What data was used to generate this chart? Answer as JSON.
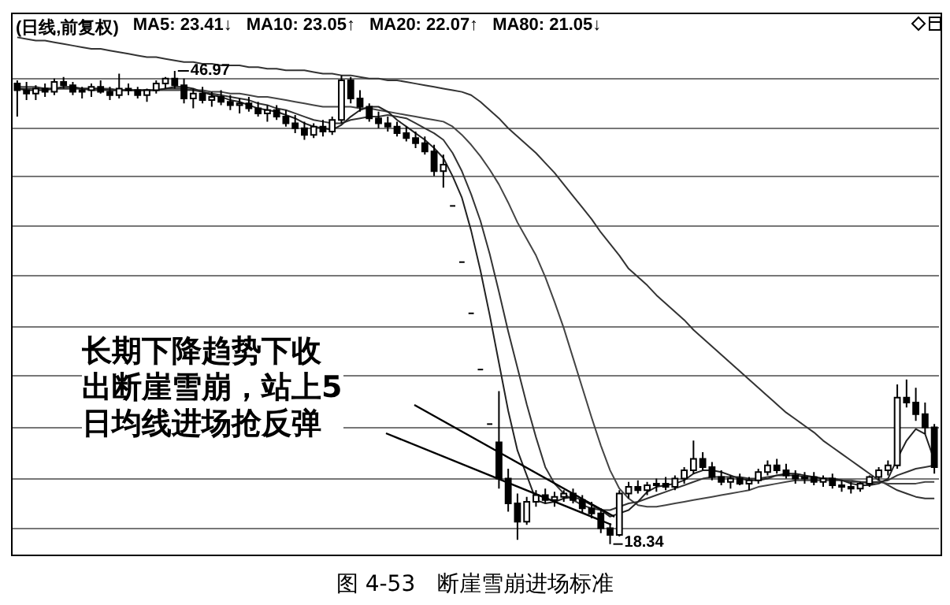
{
  "chart_data": {
    "type": "candlestick",
    "title": "(日线,前复权)",
    "categories": [
      null,
      null,
      null,
      null,
      null,
      null,
      null,
      null,
      null,
      null,
      null,
      null,
      null,
      null,
      null,
      null,
      null,
      null,
      null,
      null,
      null,
      null,
      null,
      null,
      null,
      null,
      null,
      null,
      null,
      null,
      null,
      null,
      null,
      null,
      null,
      null,
      null,
      null,
      null,
      null,
      null,
      null,
      null,
      null,
      null,
      null,
      null,
      null,
      null,
      null,
      null,
      null,
      null,
      null,
      null,
      null,
      null,
      null,
      null,
      null,
      null,
      null,
      null,
      null,
      null,
      null,
      null,
      null,
      null,
      null,
      null,
      null,
      null,
      null,
      null,
      null,
      null,
      null,
      null,
      null,
      null,
      null,
      null,
      null,
      null,
      null,
      null,
      null,
      null,
      null,
      null,
      null,
      null,
      null,
      null,
      null,
      null,
      null,
      null,
      null
    ],
    "series": [
      {
        "type": "candlestick",
        "color": "#000000",
        "ohlc": [
          [
            46.2,
            46.4,
            44.2,
            45.8
          ],
          [
            45.8,
            46.3,
            45.2,
            45.6
          ],
          [
            45.6,
            46.1,
            45.2,
            45.9
          ],
          [
            45.9,
            46.2,
            45.4,
            45.7
          ],
          [
            45.7,
            46.5,
            45.5,
            46.3
          ],
          [
            46.3,
            46.6,
            45.9,
            46.1
          ],
          [
            46.1,
            46.3,
            45.5,
            45.7
          ],
          [
            45.7,
            46.0,
            45.3,
            45.8
          ],
          [
            45.8,
            46.2,
            45.4,
            46.0
          ],
          [
            46.0,
            46.4,
            45.6,
            45.7
          ],
          [
            45.7,
            46.0,
            45.2,
            45.5
          ],
          [
            45.5,
            46.8,
            45.3,
            45.9
          ],
          [
            45.9,
            46.2,
            45.5,
            45.8
          ],
          [
            45.8,
            46.0,
            45.3,
            45.5
          ],
          [
            45.5,
            45.9,
            45.1,
            45.8
          ],
          [
            45.8,
            46.4,
            45.6,
            46.2
          ],
          [
            46.2,
            46.6,
            45.9,
            46.5
          ],
          [
            46.5,
            46.97,
            45.9,
            46.1
          ],
          [
            46.1,
            46.5,
            45.0,
            45.3
          ],
          [
            45.3,
            45.9,
            44.7,
            45.6
          ],
          [
            45.6,
            46.0,
            45.0,
            45.2
          ],
          [
            45.2,
            45.7,
            44.8,
            45.4
          ],
          [
            45.4,
            45.8,
            44.9,
            45.1
          ],
          [
            45.1,
            45.5,
            44.6,
            44.9
          ],
          [
            44.9,
            45.3,
            44.4,
            45.0
          ],
          [
            45.0,
            45.4,
            44.5,
            44.7
          ],
          [
            44.7,
            45.1,
            44.2,
            44.4
          ],
          [
            44.4,
            44.9,
            43.9,
            44.6
          ],
          [
            44.6,
            44.9,
            44.0,
            44.2
          ],
          [
            44.2,
            44.6,
            43.6,
            43.8
          ],
          [
            43.8,
            44.3,
            43.2,
            43.5
          ],
          [
            43.5,
            43.9,
            42.8,
            43.1
          ],
          [
            43.1,
            43.8,
            42.9,
            43.6
          ],
          [
            43.6,
            44.0,
            43.0,
            43.3
          ],
          [
            43.3,
            44.2,
            43.1,
            44.0
          ],
          [
            44.0,
            46.7,
            43.8,
            46.4
          ],
          [
            46.4,
            46.6,
            45.0,
            45.3
          ],
          [
            45.3,
            45.8,
            44.5,
            44.8
          ],
          [
            44.8,
            45.0,
            43.9,
            44.1
          ],
          [
            44.1,
            44.5,
            43.5,
            43.8
          ],
          [
            43.8,
            44.2,
            43.3,
            43.6
          ],
          [
            43.6,
            43.9,
            43.0,
            43.2
          ],
          [
            43.2,
            43.6,
            42.7,
            42.9
          ],
          [
            42.9,
            43.3,
            42.3,
            42.6
          ],
          [
            42.6,
            43.0,
            41.9,
            42.1
          ],
          [
            42.1,
            42.5,
            40.6,
            40.9
          ],
          [
            40.9,
            41.9,
            39.9,
            41.3
          ],
          [
            38.8,
            38.8,
            38.8,
            38.8
          ],
          [
            35.4,
            35.4,
            35.4,
            35.4
          ],
          [
            32.3,
            32.3,
            32.3,
            32.3
          ],
          [
            28.9,
            28.9,
            28.9,
            28.9
          ],
          [
            25.6,
            25.6,
            25.6,
            25.6
          ],
          [
            24.5,
            27.6,
            21.7,
            22.3
          ],
          [
            22.3,
            22.9,
            20.3,
            20.8
          ],
          [
            20.8,
            21.4,
            18.6,
            19.7
          ],
          [
            19.7,
            21.2,
            19.5,
            20.9
          ],
          [
            20.9,
            21.6,
            20.6,
            21.3
          ],
          [
            21.3,
            21.7,
            20.8,
            21.0
          ],
          [
            21.0,
            21.5,
            20.6,
            21.2
          ],
          [
            21.2,
            21.6,
            20.9,
            21.4
          ],
          [
            21.4,
            21.7,
            20.8,
            21.0
          ],
          [
            21.0,
            21.3,
            20.2,
            20.5
          ],
          [
            20.5,
            20.9,
            19.9,
            20.2
          ],
          [
            20.2,
            20.5,
            19.0,
            19.3
          ],
          [
            19.3,
            19.6,
            18.34,
            18.9
          ],
          [
            18.9,
            21.6,
            18.8,
            21.4
          ],
          [
            21.4,
            22.1,
            21.1,
            21.8
          ],
          [
            21.8,
            22.2,
            21.4,
            21.6
          ],
          [
            21.6,
            22.1,
            21.3,
            21.9
          ],
          [
            21.9,
            22.3,
            21.5,
            22.0
          ],
          [
            22.0,
            22.4,
            21.6,
            21.8
          ],
          [
            21.8,
            22.5,
            21.6,
            22.3
          ],
          [
            22.3,
            23.0,
            22.0,
            22.8
          ],
          [
            22.8,
            24.6,
            22.6,
            23.5
          ],
          [
            23.5,
            23.9,
            22.8,
            23.0
          ],
          [
            23.0,
            23.3,
            22.2,
            22.4
          ],
          [
            22.4,
            22.8,
            21.9,
            22.1
          ],
          [
            22.1,
            22.5,
            21.7,
            22.3
          ],
          [
            22.3,
            22.6,
            21.9,
            22.0
          ],
          [
            22.0,
            22.4,
            21.6,
            22.2
          ],
          [
            22.2,
            22.9,
            22.0,
            22.7
          ],
          [
            22.7,
            23.4,
            22.5,
            23.1
          ],
          [
            23.1,
            23.5,
            22.6,
            22.8
          ],
          [
            22.8,
            23.2,
            22.3,
            22.5
          ],
          [
            22.5,
            22.8,
            22.0,
            22.3
          ],
          [
            22.3,
            22.7,
            22.0,
            22.4
          ],
          [
            22.4,
            22.7,
            21.9,
            22.1
          ],
          [
            22.1,
            22.5,
            21.8,
            22.3
          ],
          [
            22.3,
            22.6,
            21.7,
            21.9
          ],
          [
            21.9,
            22.2,
            21.5,
            21.8
          ],
          [
            21.8,
            22.1,
            21.4,
            21.7
          ],
          [
            21.7,
            22.1,
            21.5,
            22.0
          ],
          [
            22.0,
            22.5,
            21.8,
            22.4
          ],
          [
            22.4,
            23.0,
            22.2,
            22.8
          ],
          [
            22.8,
            23.4,
            22.5,
            23.1
          ],
          [
            23.1,
            28.0,
            22.9,
            27.2
          ],
          [
            27.2,
            28.3,
            26.6,
            26.9
          ],
          [
            26.9,
            27.8,
            25.8,
            26.2
          ],
          [
            26.2,
            26.9,
            25.0,
            25.4
          ],
          [
            25.4,
            25.6,
            22.6,
            23.0
          ]
        ],
        "value_labels": [
          null,
          null,
          null,
          null,
          null,
          null,
          null,
          null,
          null,
          null,
          null,
          null,
          null,
          null,
          null,
          null,
          null,
          "46.97",
          null,
          null,
          null,
          null,
          null,
          null,
          null,
          null,
          null,
          null,
          null,
          null,
          null,
          null,
          null,
          null,
          null,
          null,
          null,
          null,
          null,
          null,
          null,
          null,
          null,
          null,
          null,
          null,
          null,
          null,
          null,
          null,
          null,
          null,
          null,
          null,
          null,
          null,
          null,
          null,
          null,
          null,
          null,
          null,
          null,
          null,
          "18.34",
          null,
          null,
          null,
          null,
          null,
          null,
          null,
          null,
          null,
          null,
          null,
          null,
          null,
          null,
          null,
          null,
          null,
          null,
          null,
          null,
          null,
          null,
          null,
          null,
          null,
          null,
          null,
          null,
          null,
          null,
          null,
          null,
          null,
          null,
          null
        ]
      },
      {
        "type": "line",
        "color": "#222222",
        "values": [
          45.9,
          45.8,
          45.8,
          45.8,
          45.9,
          46.0,
          46.0,
          45.9,
          45.9,
          45.9,
          45.8,
          45.8,
          45.8,
          45.8,
          45.8,
          45.8,
          45.9,
          46.0,
          46.0,
          45.9,
          45.7,
          45.5,
          45.4,
          45.2,
          45.1,
          44.9,
          44.7,
          44.6,
          44.5,
          44.3,
          44.1,
          43.8,
          43.6,
          43.5,
          43.4,
          43.7,
          44.2,
          44.6,
          44.8,
          44.8,
          44.5,
          44.0,
          43.6,
          43.2,
          42.8,
          42.3,
          41.7,
          40.6,
          39.3,
          37.3,
          34.9,
          32.2,
          29.3,
          26.4,
          24.0,
          22.5,
          21.0,
          20.8,
          20.9,
          21.1,
          21.2,
          21.0,
          20.7,
          20.4,
          20.0,
          20.2,
          20.4,
          20.9,
          21.5,
          21.8,
          21.9,
          22.0,
          22.2,
          22.6,
          22.8,
          22.8,
          22.7,
          22.5,
          22.3,
          22.2,
          22.2,
          22.3,
          22.5,
          22.6,
          22.6,
          22.5,
          22.4,
          22.3,
          22.3,
          22.2,
          22.0,
          21.9,
          21.9,
          22.0,
          22.3,
          23.5,
          24.6,
          25.3,
          25.0,
          23.4
        ]
      },
      {
        "type": "line",
        "color": "#333333",
        "values": [
          45.9,
          45.9,
          45.9,
          45.9,
          45.9,
          45.9,
          45.9,
          45.9,
          45.8,
          45.8,
          45.8,
          45.8,
          45.8,
          45.8,
          45.8,
          45.8,
          45.9,
          45.9,
          45.9,
          45.8,
          45.7,
          45.6,
          45.5,
          45.4,
          45.3,
          45.2,
          45.0,
          44.9,
          44.7,
          44.6,
          44.4,
          44.2,
          44.0,
          43.9,
          43.8,
          43.8,
          44.0,
          44.1,
          44.2,
          44.2,
          44.3,
          44.2,
          44.1,
          43.8,
          43.5,
          43.2,
          42.8,
          42.0,
          40.9,
          39.5,
          37.9,
          35.9,
          33.6,
          31.2,
          29.0,
          26.8,
          24.8,
          23.0,
          22.0,
          21.4,
          21.0,
          20.7,
          20.5,
          20.4,
          20.4,
          20.6,
          20.8,
          20.9,
          21.1,
          21.3,
          21.5,
          21.7,
          21.9,
          22.1,
          22.3,
          22.4,
          22.4,
          22.4,
          22.4,
          22.3,
          22.3,
          22.4,
          22.5,
          22.5,
          22.5,
          22.4,
          22.4,
          22.3,
          22.3,
          22.2,
          22.1,
          22.1,
          22.0,
          22.1,
          22.2,
          22.5,
          22.7,
          22.9,
          23.0,
          23.1
        ]
      },
      {
        "type": "line",
        "color": "#444444",
        "values": [
          46.0,
          46.0,
          46.0,
          45.9,
          45.9,
          45.9,
          45.9,
          45.9,
          45.9,
          45.9,
          45.9,
          45.8,
          45.8,
          45.8,
          45.8,
          45.8,
          45.8,
          45.8,
          45.8,
          45.8,
          45.8,
          45.7,
          45.7,
          45.6,
          45.6,
          45.5,
          45.4,
          45.4,
          45.3,
          45.2,
          45.1,
          45.0,
          44.9,
          44.8,
          44.8,
          44.8,
          44.8,
          44.7,
          44.7,
          44.6,
          44.5,
          44.4,
          44.3,
          44.2,
          44.1,
          44.0,
          43.9,
          43.6,
          43.1,
          42.5,
          41.8,
          41.0,
          40.1,
          39.0,
          37.8,
          36.8,
          35.8,
          34.5,
          33.0,
          31.4,
          29.6,
          27.8,
          26.0,
          24.3,
          22.8,
          21.7,
          21.1,
          20.7,
          20.6,
          20.6,
          20.7,
          20.8,
          20.9,
          21.0,
          21.1,
          21.2,
          21.3,
          21.4,
          21.5,
          21.6,
          21.8,
          21.9,
          22.0,
          22.1,
          22.2,
          22.2,
          22.2,
          22.2,
          22.2,
          22.2,
          22.2,
          22.1,
          22.1,
          22.1,
          22.0,
          22.0,
          22.0,
          22.0,
          22.1,
          22.1
        ]
      },
      {
        "type": "line",
        "color": "#333333",
        "values": [
          49.0,
          48.9,
          48.8,
          48.8,
          48.7,
          48.6,
          48.5,
          48.4,
          48.3,
          48.3,
          48.2,
          48.1,
          48.0,
          47.9,
          47.8,
          47.8,
          47.7,
          47.6,
          47.5,
          47.5,
          47.4,
          47.4,
          47.3,
          47.3,
          47.3,
          47.2,
          47.2,
          47.1,
          47.1,
          47.0,
          47.0,
          47.0,
          46.9,
          46.8,
          46.8,
          46.7,
          46.7,
          46.6,
          46.5,
          46.5,
          46.4,
          46.4,
          46.3,
          46.2,
          46.1,
          46.0,
          45.9,
          45.8,
          45.7,
          45.5,
          45.1,
          44.6,
          44.1,
          43.5,
          43.0,
          42.5,
          42.0,
          41.4,
          40.8,
          40.1,
          39.4,
          38.7,
          38.0,
          37.2,
          36.5,
          35.8,
          35.0,
          34.5,
          34.0,
          33.4,
          32.9,
          32.4,
          31.9,
          31.3,
          30.8,
          30.3,
          29.8,
          29.3,
          28.8,
          28.3,
          27.8,
          27.3,
          26.8,
          26.3,
          25.9,
          25.5,
          25.1,
          24.6,
          24.2,
          23.8,
          23.4,
          23.0,
          22.6,
          22.2,
          21.9,
          21.6,
          21.4,
          21.2,
          21.1,
          21.1
        ]
      }
    ],
    "ylim": [
      17.8,
      50.4
    ],
    "yticks": [
      {
        "value": 19.3,
        "label": null
      },
      {
        "value": 22.3,
        "label": null
      },
      {
        "value": 25.4,
        "label": null
      },
      {
        "value": 28.5,
        "label": null
      },
      {
        "value": 31.5,
        "label": null
      },
      {
        "value": 34.6,
        "label": null
      },
      {
        "value": 37.6,
        "label": null
      },
      {
        "value": 40.6,
        "label": null
      },
      {
        "value": 43.5,
        "label": null
      },
      {
        "value": 46.5,
        "label": null
      }
    ],
    "grid": "y",
    "tick_labels": false,
    "annotations": [
      "MA5: 23.41↓",
      "MA10: 23.05↑",
      "MA20: 22.07↑",
      "MA80: 21.05↓",
      "长期下降趋势下收出断崖雪崩，站上5日均线进场抢反弹",
      "图 4-53　断崖雪崩进场标准"
    ]
  }
}
